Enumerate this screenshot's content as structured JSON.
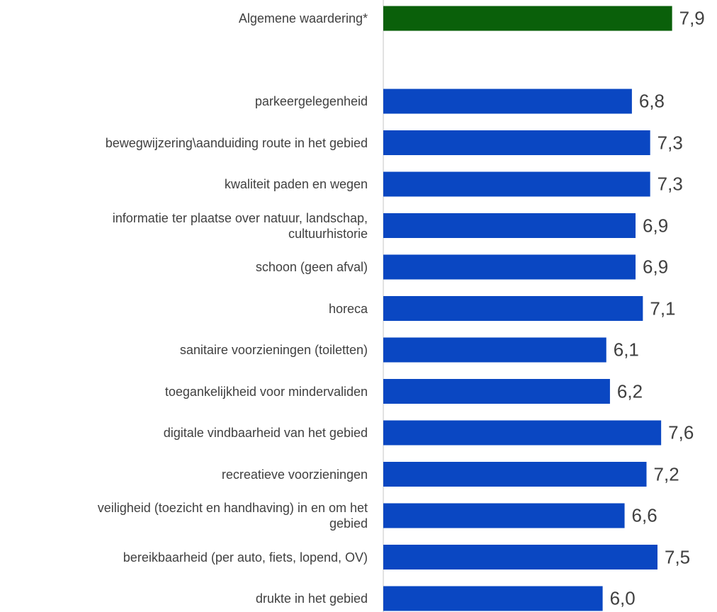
{
  "chart_data": {
    "type": "hbar",
    "categories": [
      "Algemene waardering*",
      null,
      "parkeergelegenheid",
      "bewegwijzering\\aanduiding route in het gebied",
      "kwaliteit paden en wegen",
      "informatie ter plaatse over natuur, landschap,\ncultuurhistorie",
      "schoon (geen afval)",
      "horeca",
      "sanitaire voorzieningen (toiletten)",
      "toegankelijkheid voor mindervaliden",
      "digitale vindbaarheid van het gebied",
      "recreatieve voorzieningen",
      "veiligheid (toezicht en handhaving) in en om het\ngebied",
      "bereikbaarheid (per auto, fiets, lopend, OV)",
      "drukte in het gebied"
    ],
    "values": [
      7.9,
      null,
      6.8,
      7.3,
      7.3,
      6.9,
      6.9,
      7.1,
      6.1,
      6.2,
      7.6,
      7.2,
      6.6,
      7.5,
      6.0
    ],
    "value_labels": [
      "7,9",
      null,
      "6,8",
      "7,3",
      "7,3",
      "6,9",
      "6,9",
      "7,1",
      "6,1",
      "6,2",
      "7,6",
      "7,2",
      "6,6",
      "7,5",
      "6,0"
    ],
    "colors": [
      "#0a600a",
      null,
      "#0a47c2",
      "#0a47c2",
      "#0a47c2",
      "#0a47c2",
      "#0a47c2",
      "#0a47c2",
      "#0a47c2",
      "#0a47c2",
      "#0a47c2",
      "#0a47c2",
      "#0a47c2",
      "#0a47c2",
      "#0a47c2"
    ],
    "xlim": [
      0,
      9
    ]
  }
}
